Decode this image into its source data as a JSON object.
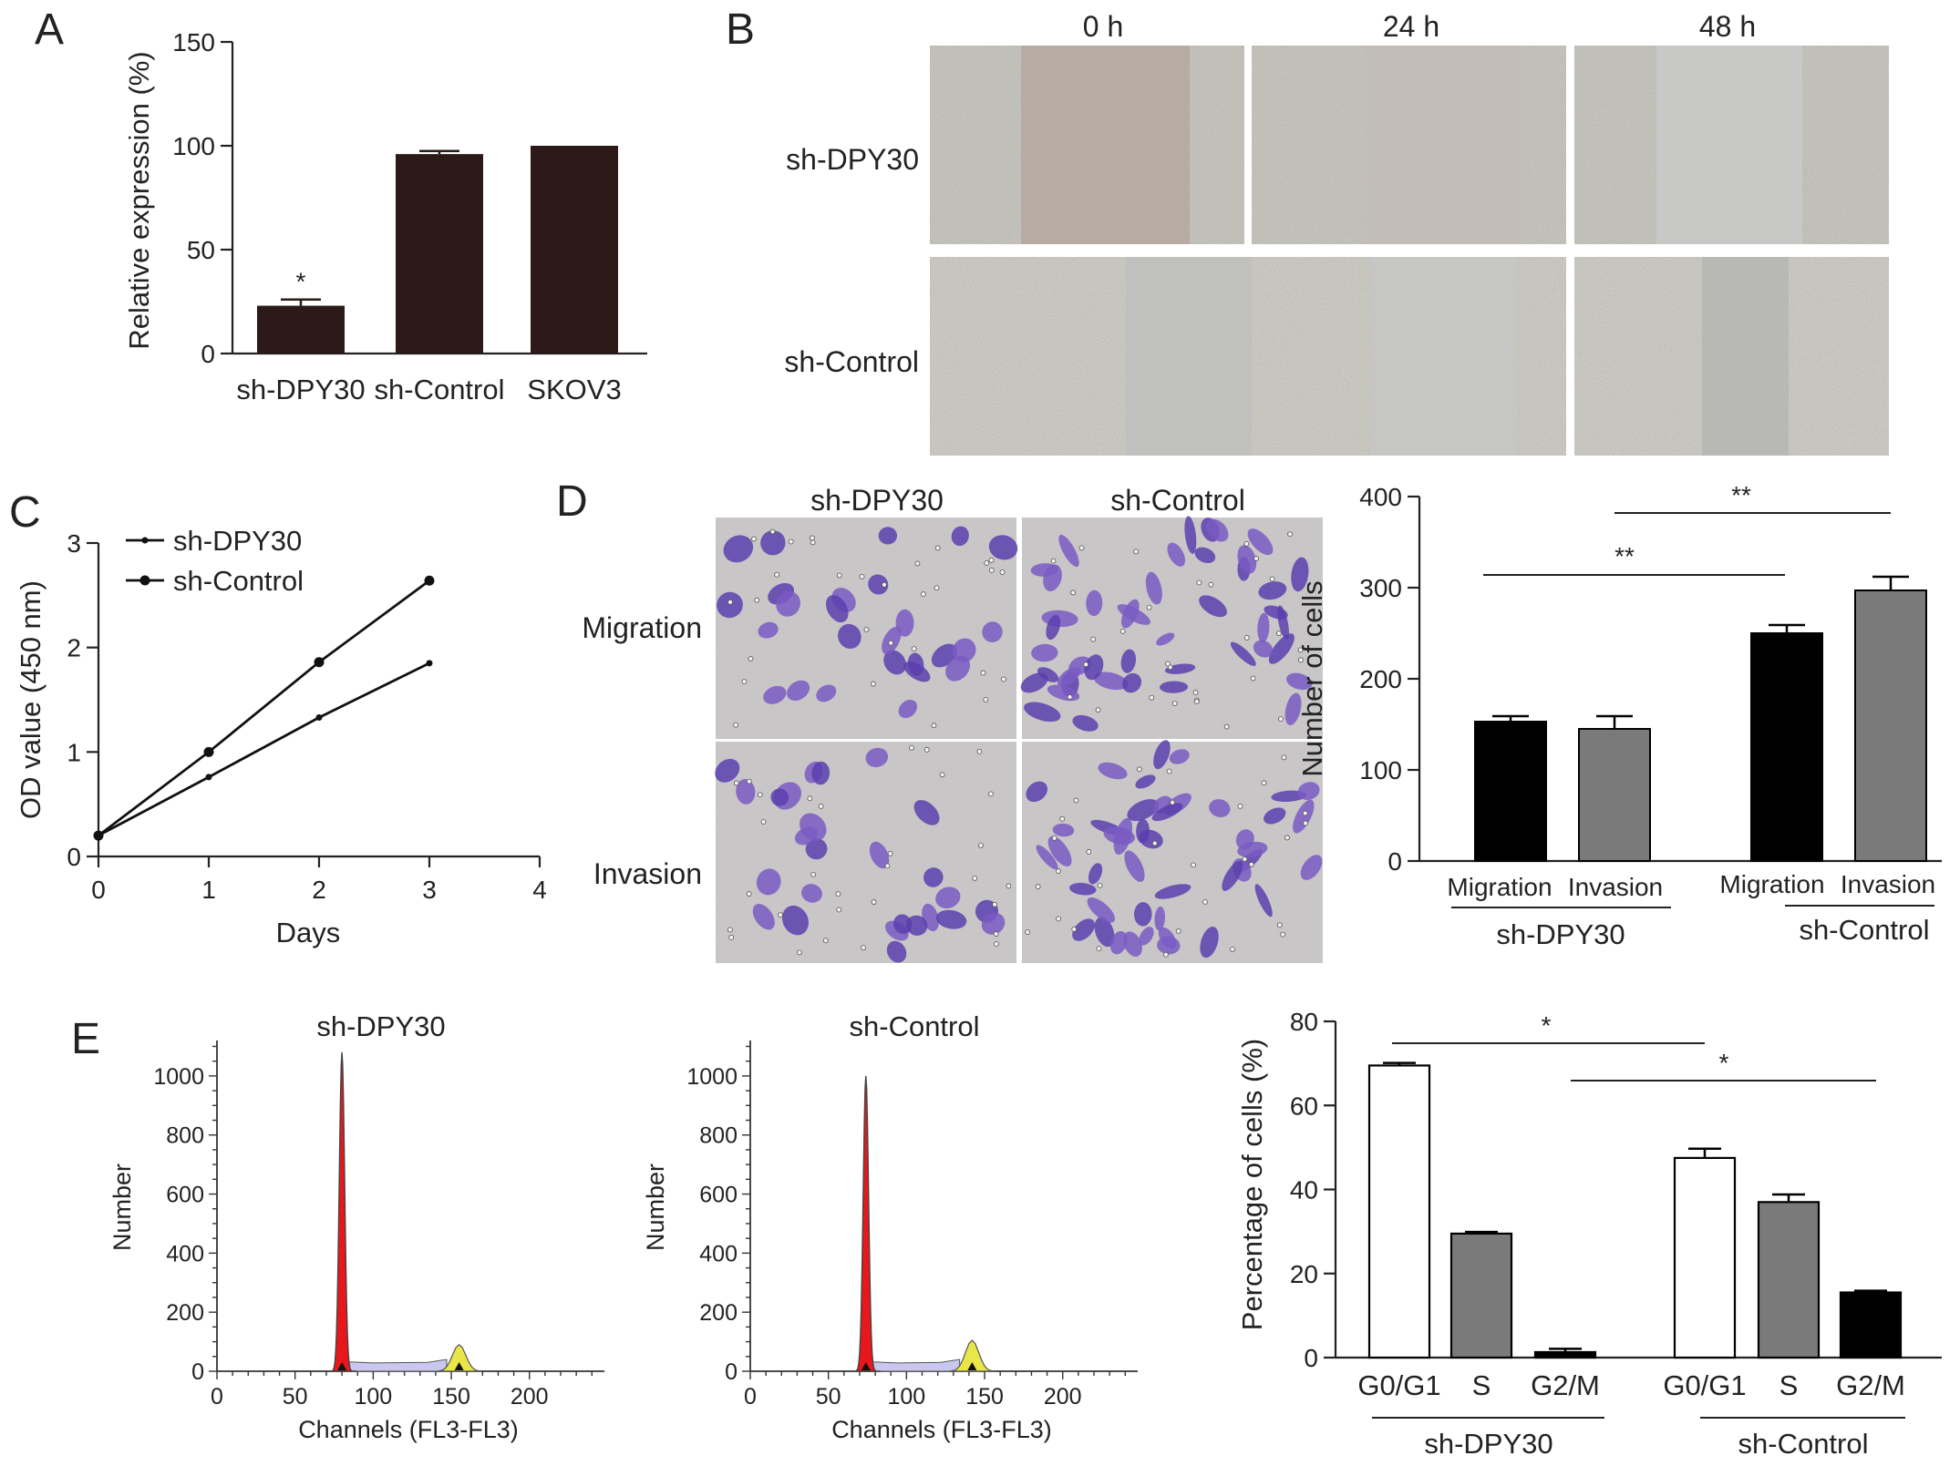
{
  "panels": {
    "A": "A",
    "B": "B",
    "C": "C",
    "D": "D",
    "E": "E"
  },
  "colors": {
    "bar_dark": "#2b1a18",
    "bar_black": "#000000",
    "bar_gray": "#7a7a7a",
    "bar_white": "#ffffff",
    "histogram_g1": "#e8171b",
    "histogram_g2": "#e9e64a",
    "histogram_s": "#c9c6f0"
  },
  "panel_b": {
    "time_labels": [
      "0 h",
      "24 h",
      "48 h"
    ],
    "row_labels": [
      "sh-DPY30",
      "sh-Control"
    ]
  },
  "panel_d_images": {
    "col_labels": [
      "sh-DPY30",
      "sh-Control"
    ],
    "row_labels": [
      "Migration",
      "Invasion"
    ]
  },
  "panel_e_histograms": [
    {
      "title": "sh-DPY30",
      "ylabel": "Number",
      "xlabel": "Channels (FL3-FL3)",
      "yticks": [
        0,
        200,
        400,
        600,
        800,
        1000
      ],
      "xticks": [
        0,
        50,
        100,
        150,
        200
      ],
      "g1_peak_channel": 80,
      "g1_peak_count": 1080,
      "g2_peak_channel": 155,
      "g2_peak_count": 90
    },
    {
      "title": "sh-Control",
      "ylabel": "Number",
      "xlabel": "Channels (FL3-FL3)",
      "yticks": [
        0,
        200,
        400,
        600,
        800,
        1000
      ],
      "xticks": [
        0,
        50,
        100,
        150,
        200
      ],
      "g1_peak_channel": 74,
      "g1_peak_count": 1000,
      "g2_peak_channel": 142,
      "g2_peak_count": 105
    }
  ],
  "chart_data": [
    {
      "id": "A",
      "type": "bar",
      "categories": [
        "sh-DPY30",
        "sh-Control",
        "SKOV3"
      ],
      "values": [
        23,
        96,
        100
      ],
      "errors": [
        3,
        1.5,
        0
      ],
      "ylabel": "Relative expression (%)",
      "yticks": [
        0,
        50,
        100,
        150
      ],
      "ylim": [
        0,
        150
      ],
      "annotations": [
        {
          "category": "sh-DPY30",
          "text": "*"
        }
      ]
    },
    {
      "id": "C",
      "type": "line",
      "xlabel": "Days",
      "ylabel": "OD value (450 nm)",
      "xticks": [
        0,
        1,
        2,
        3,
        4
      ],
      "yticks": [
        0,
        1,
        2,
        3
      ],
      "xlim": [
        0,
        4
      ],
      "ylim": [
        0,
        3
      ],
      "legend": "top-left",
      "series": [
        {
          "name": "sh-DPY30",
          "x": [
            0,
            1,
            2,
            3
          ],
          "values": [
            0.2,
            0.76,
            1.33,
            1.85
          ]
        },
        {
          "name": "sh-Control",
          "x": [
            0,
            1,
            2,
            3
          ],
          "values": [
            0.2,
            1.0,
            1.86,
            2.64
          ]
        }
      ]
    },
    {
      "id": "D",
      "type": "bar",
      "categories": [
        "Migration",
        "Invasion",
        "Migration",
        "Invasion"
      ],
      "groups": [
        "sh-DPY30",
        "sh-Control"
      ],
      "values": [
        153,
        145,
        250,
        297
      ],
      "errors": [
        6,
        14,
        9,
        15
      ],
      "ylabel": "Number of cells",
      "yticks": [
        0,
        100,
        200,
        300,
        400
      ],
      "ylim": [
        0,
        400
      ],
      "annotations": [
        {
          "text": "**"
        },
        {
          "text": "**"
        }
      ]
    },
    {
      "id": "E",
      "type": "bar",
      "categories": [
        "G0/G1",
        "S",
        "G2/M",
        "G0/G1",
        "S",
        "G2/M"
      ],
      "groups": [
        "sh-DPY30",
        "sh-Control"
      ],
      "values": [
        69.5,
        29.5,
        1.3,
        47.5,
        37,
        15.5
      ],
      "errors": [
        0.6,
        0.4,
        0.8,
        2.2,
        1.8,
        0.4
      ],
      "ylabel": "Percentage of cells (%)",
      "yticks": [
        0,
        20,
        40,
        60,
        80
      ],
      "ylim": [
        0,
        80
      ],
      "annotations": [
        {
          "text": "*"
        },
        {
          "text": "*"
        }
      ]
    }
  ]
}
